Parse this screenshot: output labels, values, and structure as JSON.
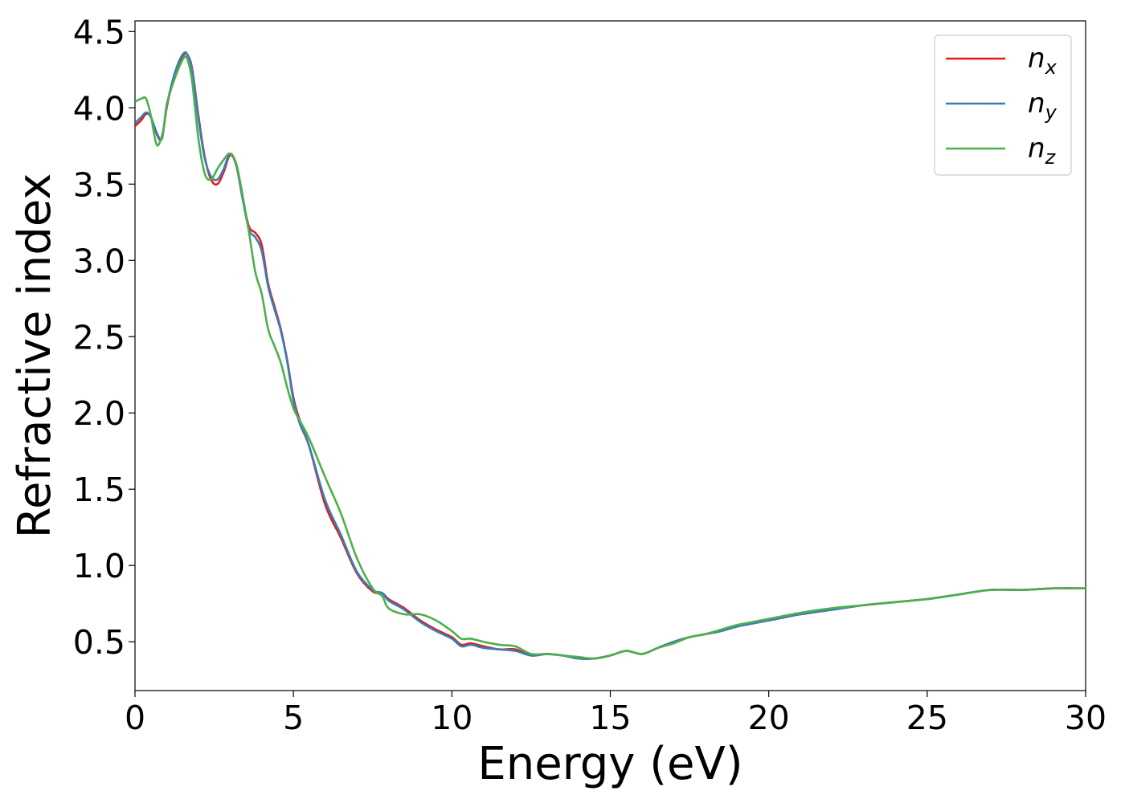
{
  "chart_data": {
    "type": "line",
    "title": "",
    "xlabel": "Energy (eV)",
    "ylabel": "Refractive index",
    "xlim": [
      0,
      30
    ],
    "ylim": [
      0.18,
      4.57
    ],
    "xticks": [
      0,
      5,
      10,
      15,
      20,
      25,
      30
    ],
    "xtick_labels": [
      "0",
      "5",
      "10",
      "15",
      "20",
      "25",
      "30"
    ],
    "yticks": [
      0.5,
      1.0,
      1.5,
      2.0,
      2.5,
      3.0,
      3.5,
      4.0,
      4.5
    ],
    "ytick_labels": [
      "0.5",
      "1.0",
      "1.5",
      "2.0",
      "2.5",
      "3.0",
      "3.5",
      "4.0",
      "4.5"
    ],
    "grid": false,
    "legend": {
      "placement": "top-right",
      "entries": [
        {
          "base": "n",
          "sub": "x"
        },
        {
          "base": "n",
          "sub": "y"
        },
        {
          "base": "n",
          "sub": "z"
        }
      ]
    },
    "series": [
      {
        "name": "n_x",
        "color": "#e41a1c",
        "x": [
          0,
          0.2,
          0.35,
          0.5,
          0.7,
          0.85,
          1.0,
          1.2,
          1.4,
          1.55,
          1.65,
          1.8,
          2.0,
          2.2,
          2.4,
          2.6,
          2.8,
          3.0,
          3.2,
          3.4,
          3.6,
          3.8,
          4.0,
          4.2,
          4.4,
          4.6,
          4.8,
          5.0,
          5.2,
          5.5,
          6.0,
          6.5,
          7.0,
          7.5,
          7.8,
          8.0,
          8.5,
          9.0,
          9.5,
          10.0,
          10.3,
          10.6,
          11.0,
          11.5,
          12.0,
          12.5,
          13.0,
          13.5,
          14.0,
          14.5,
          15.0,
          15.5,
          16.0,
          16.5,
          17.0,
          17.5,
          18.0,
          18.5,
          19.0,
          19.5,
          20.0,
          21.0,
          22.0,
          23.0,
          24.0,
          25.0,
          26.0,
          27.0,
          28.0,
          29.0,
          30.0
        ],
        "y": [
          3.88,
          3.92,
          3.96,
          3.94,
          3.82,
          3.8,
          4.0,
          4.18,
          4.3,
          4.35,
          4.35,
          4.26,
          3.95,
          3.68,
          3.53,
          3.5,
          3.58,
          3.69,
          3.62,
          3.4,
          3.22,
          3.18,
          3.1,
          2.85,
          2.7,
          2.55,
          2.35,
          2.1,
          1.95,
          1.78,
          1.4,
          1.18,
          0.95,
          0.83,
          0.82,
          0.78,
          0.72,
          0.64,
          0.58,
          0.53,
          0.48,
          0.49,
          0.47,
          0.45,
          0.45,
          0.41,
          0.42,
          0.41,
          0.39,
          0.39,
          0.41,
          0.44,
          0.42,
          0.46,
          0.5,
          0.53,
          0.55,
          0.57,
          0.6,
          0.62,
          0.64,
          0.68,
          0.71,
          0.74,
          0.76,
          0.78,
          0.81,
          0.84,
          0.84,
          0.85,
          0.85
        ]
      },
      {
        "name": "n_y",
        "color": "#377eb8",
        "x": [
          0,
          0.2,
          0.35,
          0.5,
          0.7,
          0.85,
          1.0,
          1.2,
          1.4,
          1.55,
          1.65,
          1.8,
          2.0,
          2.2,
          2.4,
          2.6,
          2.8,
          3.0,
          3.2,
          3.4,
          3.6,
          3.8,
          4.0,
          4.2,
          4.4,
          4.6,
          4.8,
          5.0,
          5.2,
          5.5,
          6.0,
          6.5,
          7.0,
          7.5,
          7.8,
          8.0,
          8.5,
          9.0,
          9.5,
          10.0,
          10.3,
          10.6,
          11.0,
          11.5,
          12.0,
          12.5,
          13.0,
          13.5,
          14.0,
          14.5,
          15.0,
          15.5,
          16.0,
          16.5,
          17.0,
          17.5,
          18.0,
          18.5,
          19.0,
          19.5,
          20.0,
          21.0,
          22.0,
          23.0,
          24.0,
          25.0,
          26.0,
          27.0,
          28.0,
          29.0,
          30.0
        ],
        "y": [
          3.9,
          3.94,
          3.97,
          3.94,
          3.83,
          3.8,
          4.01,
          4.19,
          4.31,
          4.36,
          4.35,
          4.25,
          3.93,
          3.67,
          3.55,
          3.53,
          3.6,
          3.7,
          3.62,
          3.4,
          3.2,
          3.15,
          3.06,
          2.83,
          2.68,
          2.54,
          2.34,
          2.08,
          1.93,
          1.78,
          1.43,
          1.2,
          0.96,
          0.84,
          0.82,
          0.77,
          0.71,
          0.63,
          0.57,
          0.52,
          0.47,
          0.48,
          0.46,
          0.45,
          0.44,
          0.41,
          0.42,
          0.41,
          0.39,
          0.39,
          0.41,
          0.44,
          0.42,
          0.46,
          0.5,
          0.53,
          0.55,
          0.57,
          0.6,
          0.62,
          0.64,
          0.68,
          0.71,
          0.74,
          0.76,
          0.78,
          0.81,
          0.84,
          0.84,
          0.85,
          0.85
        ]
      },
      {
        "name": "n_z",
        "color": "#4daf4a",
        "x": [
          0,
          0.2,
          0.35,
          0.5,
          0.65,
          0.75,
          0.9,
          1.0,
          1.2,
          1.4,
          1.55,
          1.65,
          1.8,
          2.0,
          2.2,
          2.4,
          2.6,
          2.8,
          3.0,
          3.2,
          3.4,
          3.6,
          3.8,
          4.0,
          4.2,
          4.4,
          4.6,
          4.8,
          5.0,
          5.2,
          5.5,
          6.0,
          6.5,
          7.0,
          7.5,
          7.8,
          8.0,
          8.5,
          9.0,
          9.5,
          10.0,
          10.3,
          10.6,
          11.0,
          11.5,
          12.0,
          12.5,
          13.0,
          13.5,
          14.0,
          14.5,
          15.0,
          15.5,
          16.0,
          16.5,
          17.0,
          17.5,
          18.0,
          18.5,
          19.0,
          19.5,
          20.0,
          21.0,
          22.0,
          23.0,
          24.0,
          25.0,
          26.0,
          27.0,
          28.0,
          29.0,
          30.0
        ],
        "y": [
          4.04,
          4.06,
          4.06,
          3.95,
          3.78,
          3.76,
          3.86,
          4.02,
          4.16,
          4.27,
          4.33,
          4.32,
          4.18,
          3.8,
          3.57,
          3.53,
          3.6,
          3.66,
          3.7,
          3.63,
          3.42,
          3.18,
          2.92,
          2.78,
          2.55,
          2.44,
          2.33,
          2.17,
          2.03,
          1.95,
          1.83,
          1.58,
          1.34,
          1.05,
          0.85,
          0.8,
          0.72,
          0.68,
          0.68,
          0.64,
          0.57,
          0.52,
          0.52,
          0.5,
          0.48,
          0.47,
          0.42,
          0.42,
          0.41,
          0.4,
          0.39,
          0.41,
          0.44,
          0.42,
          0.46,
          0.49,
          0.53,
          0.55,
          0.58,
          0.61,
          0.63,
          0.65,
          0.69,
          0.72,
          0.74,
          0.76,
          0.78,
          0.81,
          0.84,
          0.84,
          0.85,
          0.85
        ]
      }
    ]
  }
}
